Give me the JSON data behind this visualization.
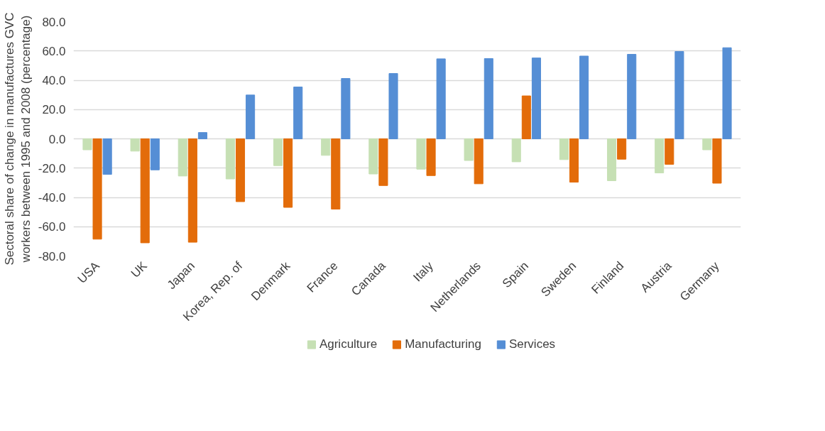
{
  "chart_data": {
    "type": "bar",
    "ylabel": "Sectoral share of change in manufactures GVC workers between 1995 and 2008 (percentage)",
    "categories": [
      "USA",
      "UK",
      "Japan",
      "Korea, Rep. of",
      "Denmark",
      "France",
      "Canada",
      "Italy",
      "Netherlands",
      "Spain",
      "Sweden",
      "Finland",
      "Austria",
      "Germany"
    ],
    "series": [
      {
        "name": "Agriculture",
        "color": "#c6e0b4",
        "values": [
          -7.5,
          -8.4,
          -25.4,
          -27.4,
          -18.3,
          -11.3,
          -24.0,
          -20.7,
          -14.8,
          -15.7,
          -14.2,
          -28.6,
          -23.3,
          -7.5
        ]
      },
      {
        "name": "Manufacturing",
        "color": "#e36c0a",
        "values": [
          -68.5,
          -71.0,
          -70.6,
          -42.9,
          -46.8,
          -48.0,
          -31.9,
          -25.1,
          -30.7,
          29.3,
          -29.6,
          -13.9,
          -17.4,
          -30.3
        ]
      },
      {
        "name": "Services",
        "color": "#558ed5",
        "values": [
          -24.3,
          -21.2,
          4.3,
          29.9,
          35.4,
          41.2,
          44.6,
          54.6,
          54.8,
          55.2,
          56.5,
          57.7,
          59.6,
          62.2
        ]
      }
    ],
    "ylim": [
      -80,
      80
    ],
    "yticks": [
      {
        "value": -80,
        "label": "-80.0"
      },
      {
        "value": -60,
        "label": "-60.0"
      },
      {
        "value": -40,
        "label": "-40.0"
      },
      {
        "value": -20,
        "label": "-20.0"
      },
      {
        "value": 0,
        "label": "0.0"
      },
      {
        "value": 20,
        "label": "20.0"
      },
      {
        "value": 40,
        "label": "40.0"
      },
      {
        "value": 60,
        "label": "60.0"
      },
      {
        "value": 80,
        "label": "80.0"
      }
    ],
    "grid": "y",
    "legend": "bottom"
  }
}
